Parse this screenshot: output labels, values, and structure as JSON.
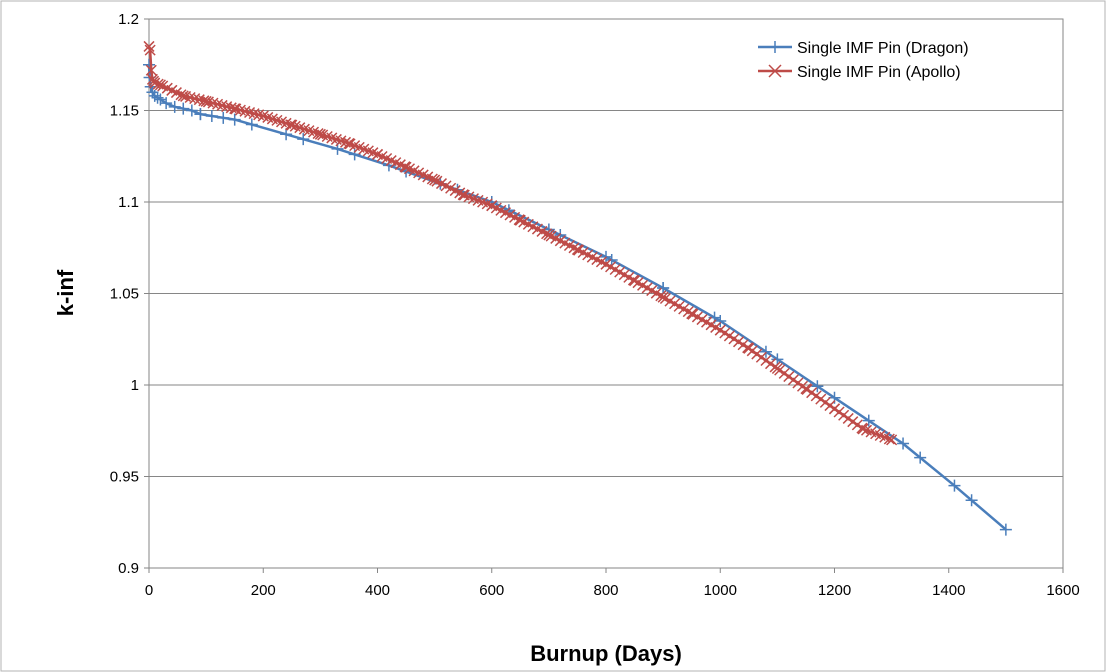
{
  "chart_data": {
    "type": "line",
    "title": "",
    "xlabel": "Burnup (Days)",
    "ylabel": "k-inf",
    "xlim": [
      0,
      1600
    ],
    "ylim": [
      0.9,
      1.2
    ],
    "x_ticks": [
      "0",
      "200",
      "400",
      "600",
      "800",
      "1000",
      "1200",
      "1400",
      "1600"
    ],
    "y_ticks": [
      "0.9",
      "0.95",
      "1",
      "1.05",
      "1.1",
      "1.15",
      "1.2"
    ],
    "grid": "horizontal",
    "legend_position": "top-right",
    "series": [
      {
        "name": "Single IMF Pin (Dragon)",
        "color": "#4a7ebb",
        "marker": "plus",
        "x": [
          0,
          1,
          3,
          6,
          10,
          15,
          20,
          30,
          45,
          60,
          75,
          90,
          110,
          130,
          150,
          240,
          330,
          420,
          510,
          600,
          700,
          800,
          900,
          1000,
          1100,
          1200,
          1320,
          1410,
          1500
        ],
        "y": [
          1.175,
          1.168,
          1.163,
          1.16,
          1.158,
          1.157,
          1.156,
          1.154,
          1.152,
          1.151,
          1.15,
          1.148,
          1.147,
          1.146,
          1.145,
          1.137,
          1.129,
          1.12,
          1.11,
          1.1,
          1.085,
          1.07,
          1.053,
          1.035,
          1.014,
          0.993,
          0.968,
          0.945,
          0.921
        ]
      },
      {
        "name": "Single IMF Pin (Apollo)",
        "color": "#be4b48",
        "marker": "x",
        "x": [
          0,
          2,
          4,
          6,
          10,
          20,
          40,
          60,
          100,
          150,
          200,
          250,
          300,
          350,
          400,
          450,
          500,
          550,
          600,
          650,
          700,
          750,
          800,
          850,
          900,
          950,
          1000,
          1050,
          1100,
          1150,
          1200,
          1250,
          1300
        ],
        "y": [
          1.185,
          1.183,
          1.172,
          1.167,
          1.165,
          1.164,
          1.161,
          1.158,
          1.155,
          1.151,
          1.147,
          1.142,
          1.137,
          1.132,
          1.126,
          1.119,
          1.112,
          1.104,
          1.098,
          1.09,
          1.082,
          1.074,
          1.066,
          1.057,
          1.048,
          1.039,
          1.03,
          1.02,
          1.009,
          0.998,
          0.987,
          0.976,
          0.97
        ]
      }
    ]
  }
}
